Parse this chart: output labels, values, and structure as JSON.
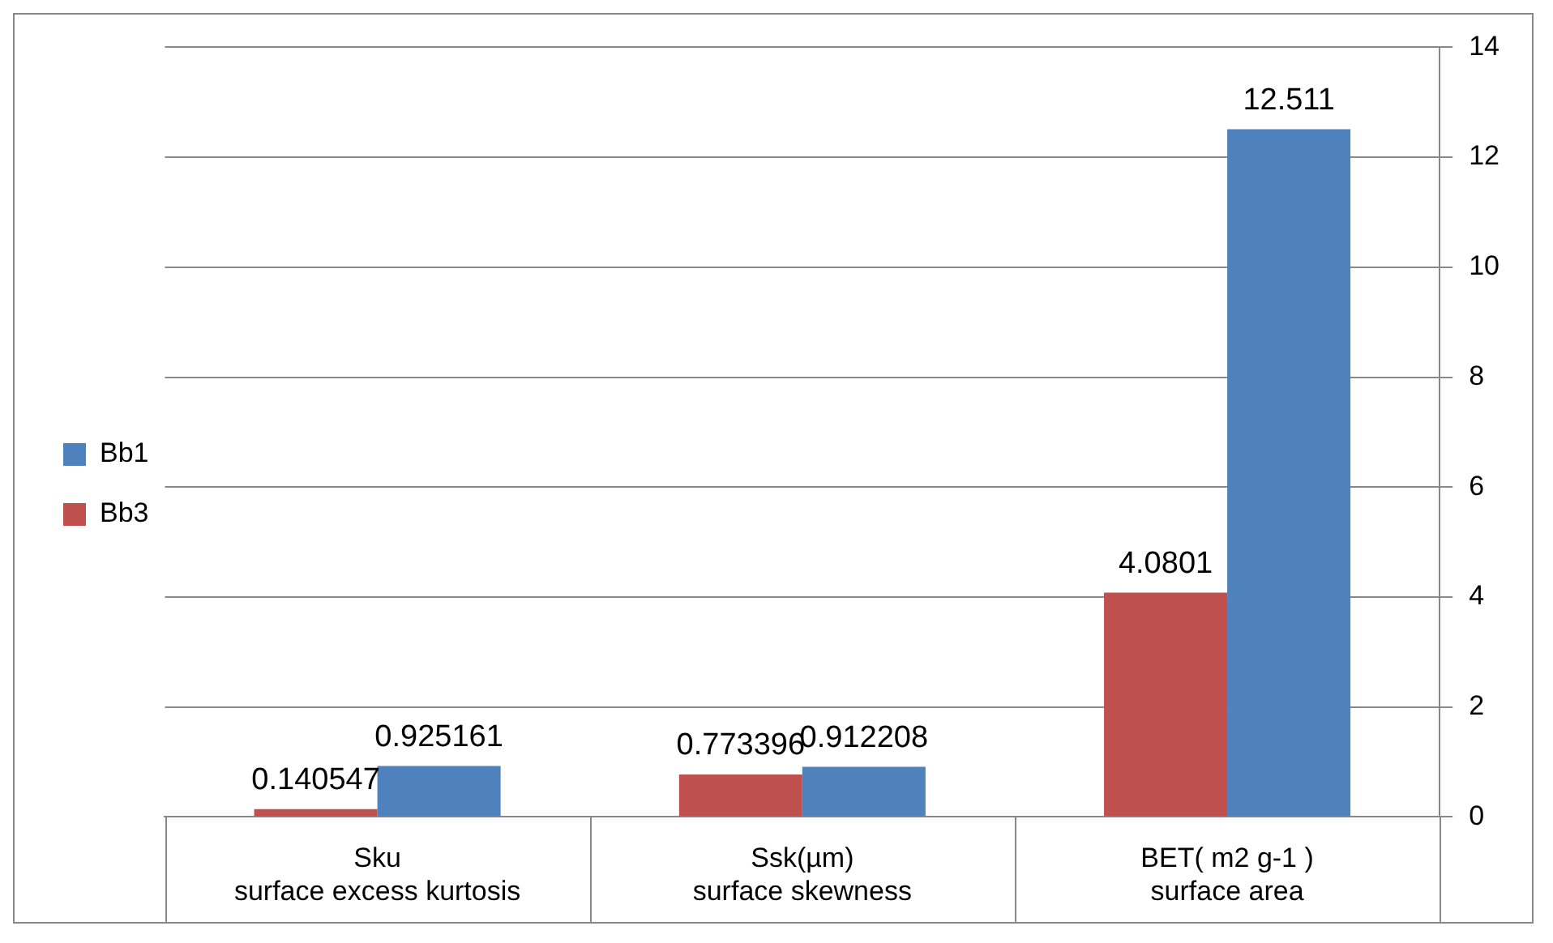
{
  "chart_data": {
    "type": "bar",
    "categories": [
      "Sku\nsurface excess kurtosis",
      "Ssk(µm)\nsurface skewness",
      "BET( m2 g-1 )\nsurface area"
    ],
    "series": [
      {
        "name": "Bb3",
        "color": "#c0504d",
        "values": [
          0.140547,
          0.773396,
          4.0801
        ]
      },
      {
        "name": "Bb1",
        "color": "#4f81bd",
        "values": [
          0.925161,
          0.912208,
          12.511
        ]
      }
    ],
    "ylim": [
      0,
      14
    ],
    "yticks": [
      0,
      2,
      4,
      6,
      8,
      10,
      12,
      14
    ],
    "grid": "y",
    "legend": "left",
    "data_labels": true
  }
}
